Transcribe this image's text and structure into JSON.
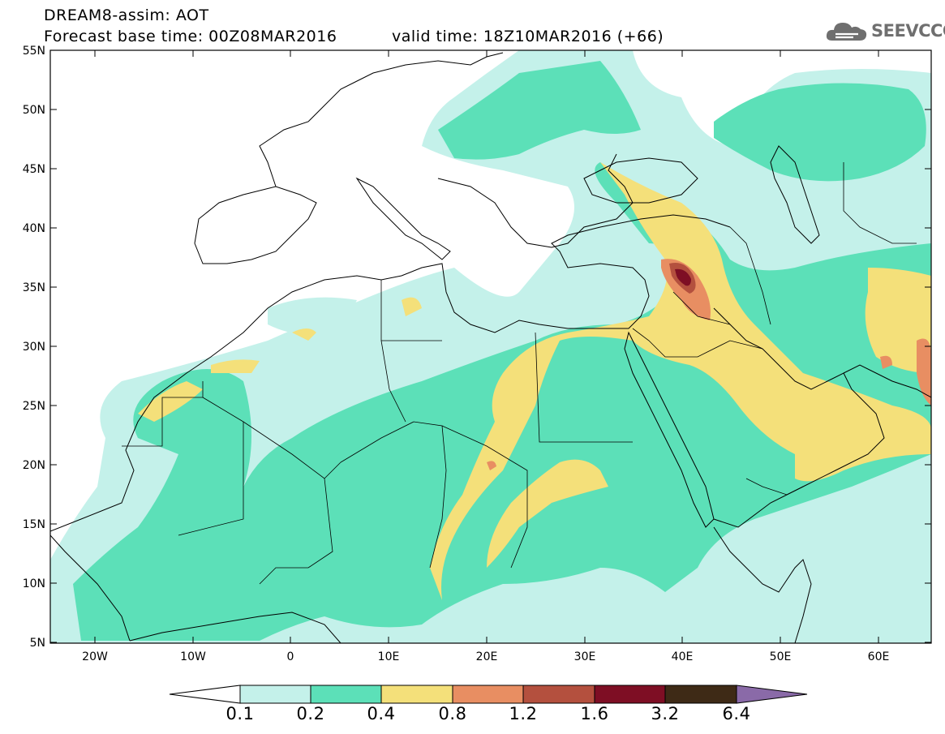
{
  "header": {
    "line1": "DREAM8-assim: AOT",
    "line2": "Forecast base time: 00Z08MAR2016",
    "valid": "valid time: 18Z10MAR2016 (+66)",
    "logo": "SEEVCCC"
  },
  "map": {
    "lat_labels": [
      "55N",
      "50N",
      "45N",
      "40N",
      "35N",
      "30N",
      "25N",
      "20N",
      "15N",
      "10N",
      "5N"
    ],
    "lon_labels": [
      "20W",
      "10W",
      "0",
      "10E",
      "20E",
      "30E",
      "40E",
      "50E",
      "60E"
    ],
    "lat_range": [
      5,
      55
    ],
    "lon_range": [
      -25,
      65
    ],
    "variable": "AOT"
  },
  "colorbar": {
    "labels": [
      "0.1",
      "0.2",
      "0.4",
      "0.8",
      "1.2",
      "1.6",
      "3.2",
      "6.4"
    ],
    "colors": [
      "#ffffff",
      "#c4f1ea",
      "#5ce0b8",
      "#f4e07a",
      "#e88e62",
      "#b4503e",
      "#7e0e24",
      "#3e2a16",
      "#8a6aa8"
    ]
  }
}
